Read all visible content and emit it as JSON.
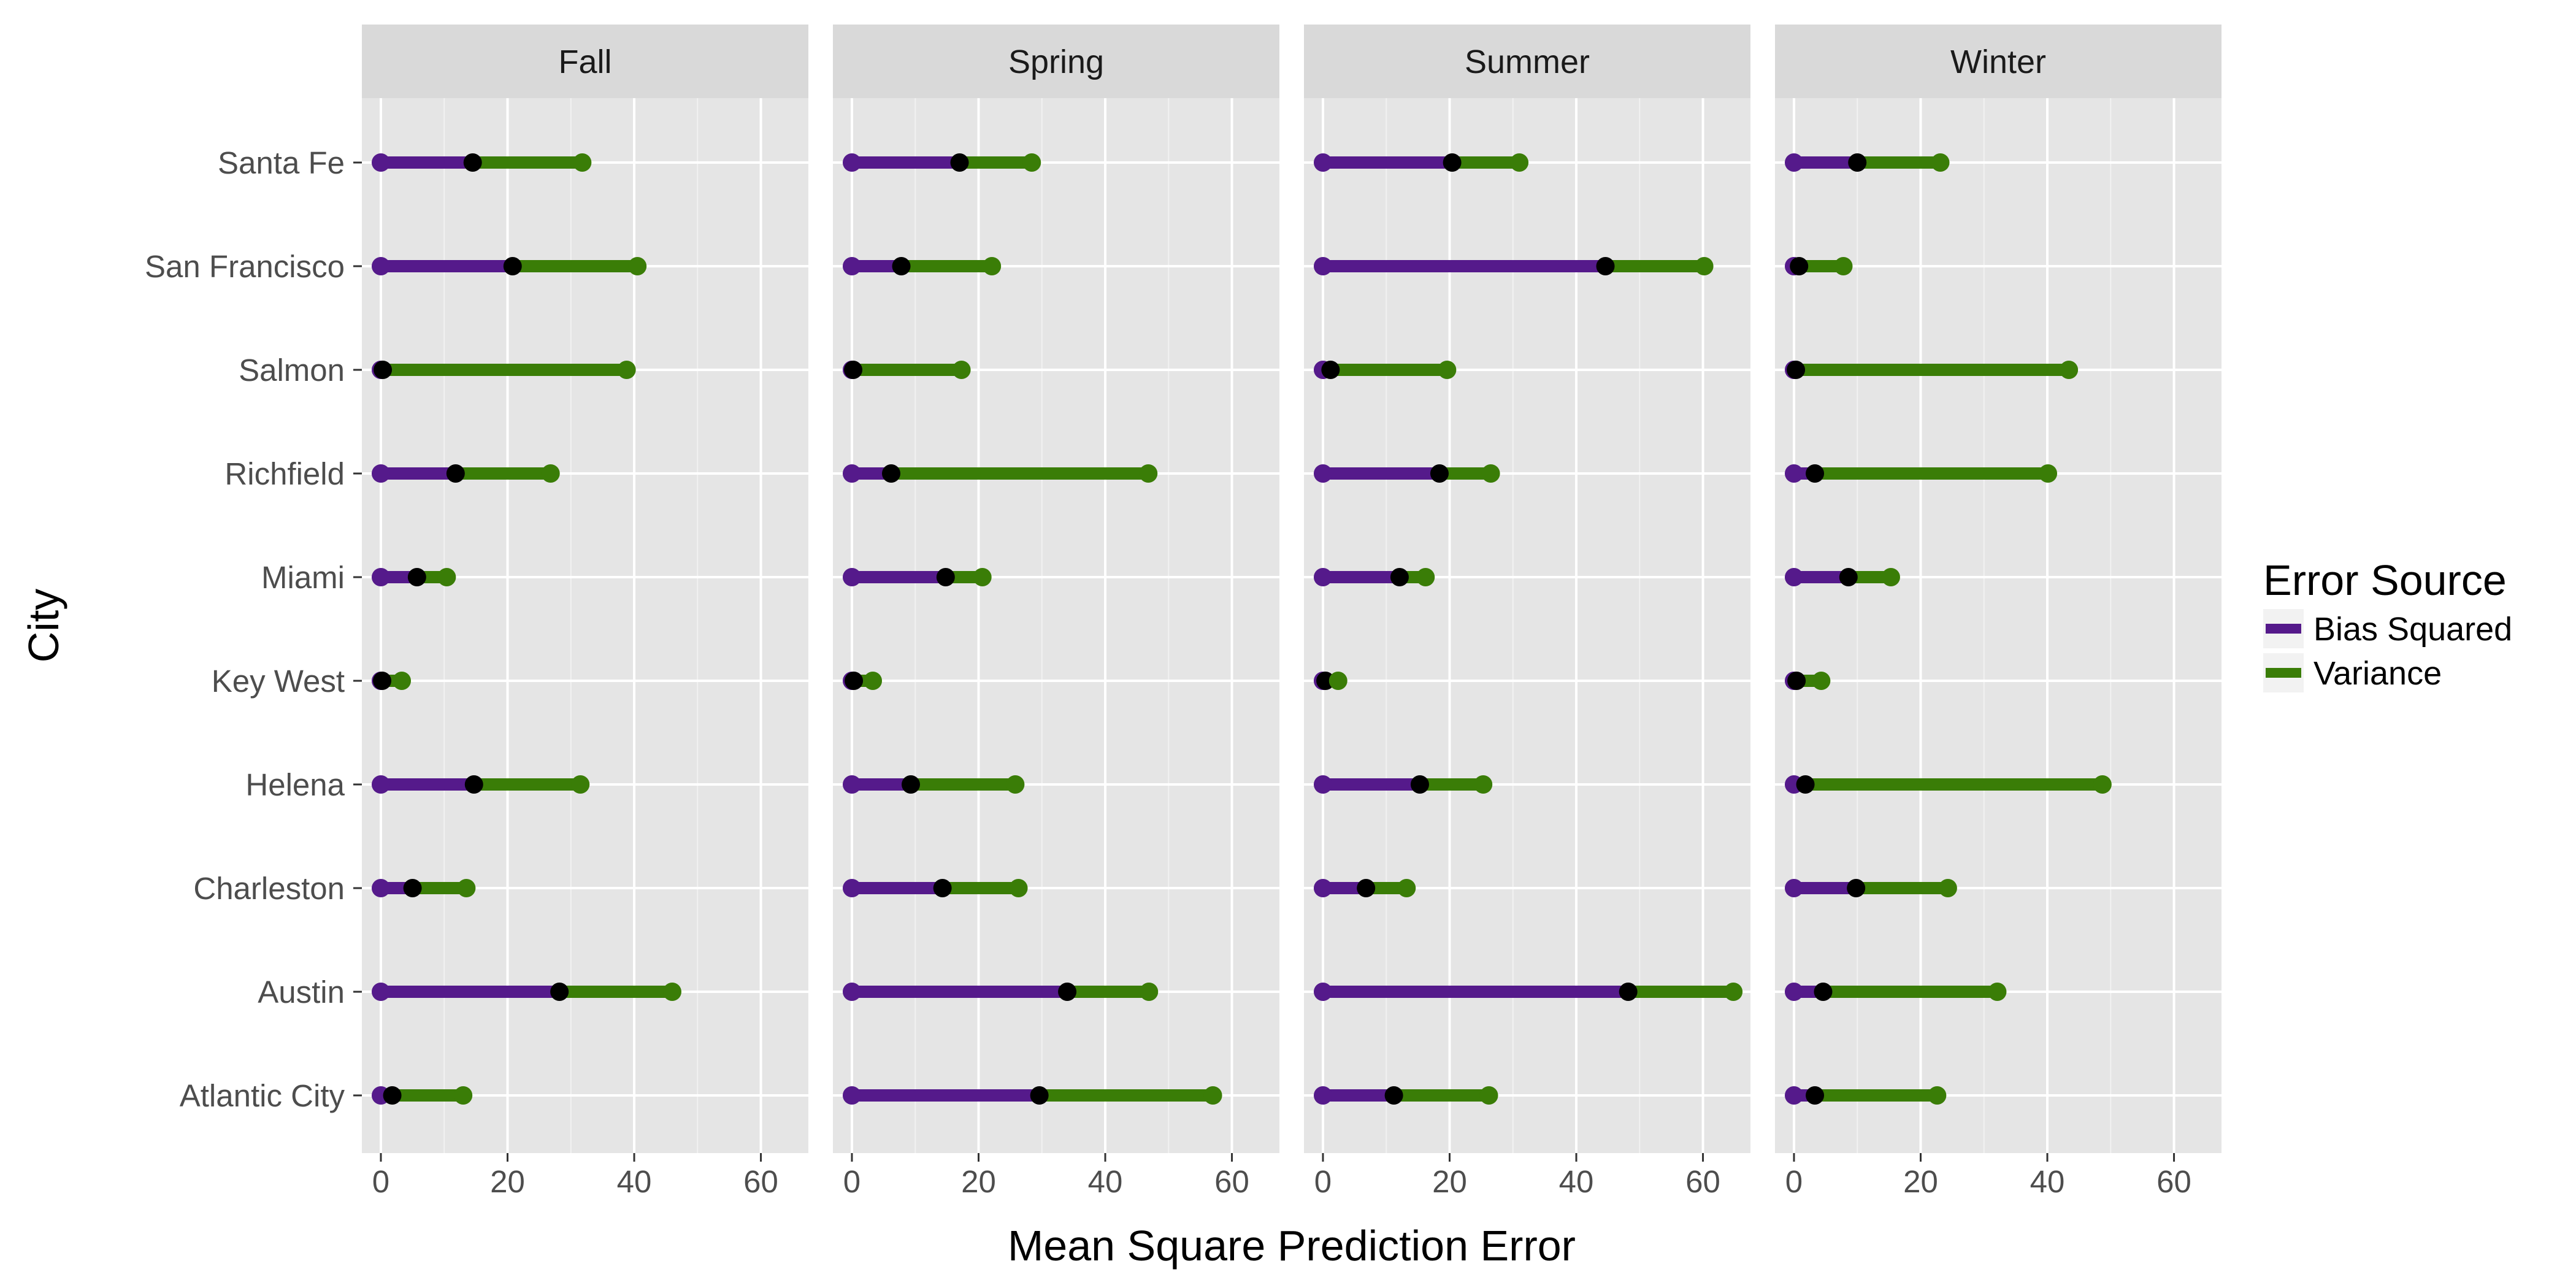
{
  "chart_data": {
    "type": "segment-dot",
    "xlabel": "Mean Square Prediction Error",
    "ylabel": "City",
    "xlim": [
      -3,
      67.5
    ],
    "x_ticks": [
      0,
      20,
      40,
      60
    ],
    "grid": true,
    "legend": {
      "title": "Error Source",
      "placement": "right",
      "entries": [
        {
          "name": "Bias Squared",
          "color": "#551a8b"
        },
        {
          "name": "Variance",
          "color": "#3a7d07"
        }
      ]
    },
    "cities": [
      "Santa Fe",
      "San Francisco",
      "Salmon",
      "Richfield",
      "Miami",
      "Key West",
      "Helena",
      "Charleston",
      "Austin",
      "Atlantic City"
    ],
    "panels": [
      {
        "season": "Fall",
        "bias_squared": [
          14.5,
          20.8,
          0.3,
          11.8,
          5.7,
          0.2,
          14.7,
          5.0,
          28.2,
          1.8
        ],
        "total": [
          31.8,
          40.5,
          38.8,
          26.8,
          10.4,
          3.3,
          31.5,
          13.5,
          46.0,
          13.0
        ]
      },
      {
        "season": "Spring",
        "bias_squared": [
          17.0,
          7.8,
          0.2,
          6.2,
          14.8,
          0.3,
          9.3,
          14.3,
          34.0,
          29.6
        ],
        "total": [
          28.4,
          22.1,
          17.3,
          46.8,
          20.6,
          3.3,
          25.8,
          26.3,
          46.9,
          57.0
        ]
      },
      {
        "season": "Summer",
        "bias_squared": [
          20.4,
          44.6,
          1.2,
          18.4,
          12.1,
          0.4,
          15.3,
          6.8,
          48.2,
          11.2
        ],
        "total": [
          31.0,
          60.2,
          19.6,
          26.5,
          16.2,
          2.4,
          25.3,
          13.2,
          64.8,
          26.2
        ]
      },
      {
        "season": "Winter",
        "bias_squared": [
          10.0,
          0.8,
          0.3,
          3.3,
          8.6,
          0.4,
          1.8,
          9.8,
          4.6,
          3.3
        ],
        "total": [
          23.1,
          7.8,
          43.4,
          40.1,
          15.3,
          4.3,
          48.7,
          24.3,
          32.1,
          22.6
        ]
      }
    ]
  }
}
